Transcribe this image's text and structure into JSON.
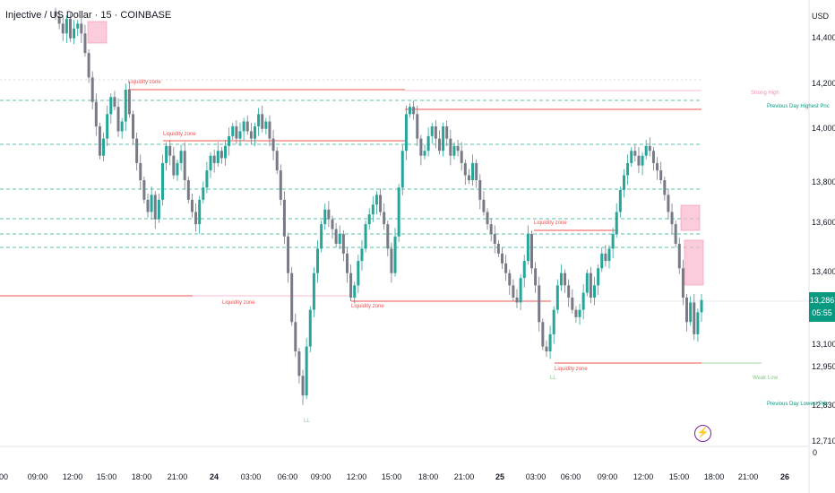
{
  "header": {
    "title": "Injective / US Dollar · 15 · COINBASE",
    "currency": "USD"
  },
  "price_axis": {
    "ticks": [
      "14,400",
      "14,200",
      "14,000",
      "13,800",
      "13,600",
      "13,400",
      "13,100",
      "12,950",
      "12,830",
      "12,710"
    ],
    "zero_label": "0",
    "current_price": "13,286",
    "countdown": "05:55",
    "badge_color": "#089981"
  },
  "time_axis": {
    "ticks": [
      {
        "label": "00",
        "bold": false
      },
      {
        "label": "09:00",
        "bold": false
      },
      {
        "label": "12:00",
        "bold": false
      },
      {
        "label": "15:00",
        "bold": false
      },
      {
        "label": "18:00",
        "bold": false
      },
      {
        "label": "21:00",
        "bold": false
      },
      {
        "label": "24",
        "bold": true
      },
      {
        "label": "03:00",
        "bold": false
      },
      {
        "label": "06:00",
        "bold": false
      },
      {
        "label": "09:00",
        "bold": false
      },
      {
        "label": "12:00",
        "bold": false
      },
      {
        "label": "15:00",
        "bold": false
      },
      {
        "label": "18:00",
        "bold": false
      },
      {
        "label": "21:00",
        "bold": false
      },
      {
        "label": "25",
        "bold": true
      },
      {
        "label": "03:00",
        "bold": false
      },
      {
        "label": "06:00",
        "bold": false
      },
      {
        "label": "09:00",
        "bold": false
      },
      {
        "label": "12:00",
        "bold": false
      },
      {
        "label": "15:00",
        "bold": false
      },
      {
        "label": "18:00",
        "bold": false
      },
      {
        "label": "21:00",
        "bold": false
      },
      {
        "label": "26",
        "bold": true
      }
    ]
  },
  "annotations": {
    "liquidity_zone": "Liquidity zone",
    "strong_high": "Strong High",
    "prev_day_high": "Previous Day Highest Pric",
    "weak_low": "Weak Low",
    "prev_day_low": "Previous Day Lowest Pric",
    "ll_label": "LL"
  },
  "colors": {
    "bull": "#26a69a",
    "bear": "#787b86",
    "zone": "#ef5350",
    "level_dash": "#22ab94",
    "pink_box": "#f8bbd0",
    "flash_icon": "#7b1fa2"
  },
  "icons": {
    "flash": "lightning-bolt-icon"
  },
  "chart_data": {
    "type": "candlestick",
    "symbol": "Injective / US Dollar",
    "interval": "15",
    "exchange": "COINBASE",
    "ylim": [
      12710,
      14480
    ],
    "levels": [
      14200,
      14130,
      13930,
      13740,
      13610,
      13560,
      13480
    ],
    "liquidity_zones": [
      14170,
      13950,
      13580,
      13320,
      13310,
      13000
    ],
    "strong_high": 14170,
    "prev_day_high": 14090,
    "weak_low": 13000,
    "current_price": 13286,
    "closes": [
      14450,
      14420,
      14380,
      14440,
      14360,
      14400,
      14420,
      14380,
      14300,
      14200,
      14100,
      14000,
      13880,
      13950,
      14050,
      14120,
      14080,
      13980,
      14020,
      14150,
      14050,
      13950,
      13850,
      13780,
      13700,
      13650,
      13720,
      13620,
      13700,
      13850,
      13920,
      13880,
      13800,
      13850,
      13900,
      13780,
      13700,
      13650,
      13600,
      13700,
      13750,
      13820,
      13880,
      13850,
      13900,
      13870,
      13920,
      13960,
      14000,
      13950,
      13980,
      14020,
      13980,
      13950,
      14000,
      14050,
      13990,
      14020,
      13950,
      13900,
      13820,
      13700,
      13550,
      13400,
      13200,
      13080,
      12980,
      12900,
      13100,
      13250,
      13400,
      13500,
      13600,
      13660,
      13620,
      13580,
      13520,
      13560,
      13480,
      13400,
      13300,
      13350,
      13450,
      13500,
      13600,
      13640,
      13680,
      13720,
      13650,
      13600,
      13500,
      13400,
      13550,
      13750,
      13900,
      14050,
      14080,
      14050,
      13950,
      13880,
      13900,
      13960,
      14000,
      13950,
      13900,
      14000,
      13950,
      13880,
      13920,
      13900,
      13850,
      13800,
      13780,
      13850,
      13780,
      13700,
      13650,
      13600,
      13560,
      13520,
      13480,
      13440,
      13400,
      13350,
      13300,
      13280,
      13380,
      13450,
      13560,
      13420,
      13350,
      13200,
      13100,
      13080,
      13150,
      13250,
      13350,
      13400,
      13350,
      13300,
      13250,
      13220,
      13250,
      13320,
      13400,
      13300,
      13350,
      13420,
      13480,
      13450,
      13500,
      13560,
      13650,
      13740,
      13800,
      13850,
      13900,
      13880,
      13840,
      13880,
      13920,
      13900,
      13850,
      13820,
      13780,
      13720,
      13650,
      13600,
      13520,
      13420,
      13300,
      13200,
      13280,
      13150,
      13240,
      13290
    ]
  }
}
